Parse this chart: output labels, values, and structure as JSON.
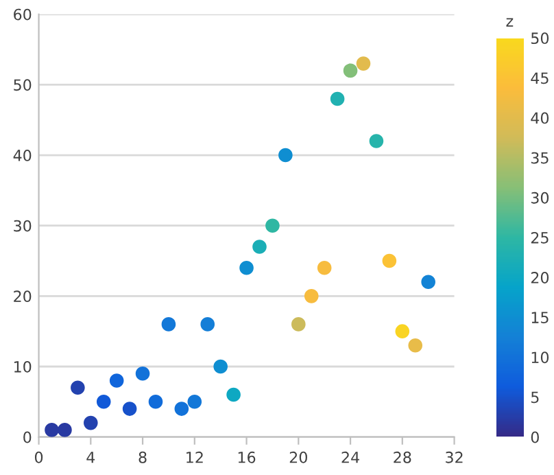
{
  "chart_data": {
    "type": "scatter",
    "clabel": "z",
    "x": [
      1,
      2,
      3,
      4,
      5,
      6,
      7,
      8,
      9,
      10,
      11,
      12,
      13,
      14,
      15,
      16,
      17,
      18,
      19,
      20,
      21,
      22,
      23,
      24,
      25,
      26,
      27,
      28,
      29,
      30
    ],
    "values": [
      1,
      1,
      7,
      2,
      5,
      8,
      4,
      9,
      5,
      16,
      4,
      5,
      16,
      10,
      6,
      24,
      27,
      30,
      40,
      16,
      20,
      24,
      48,
      52,
      53,
      42,
      25,
      15,
      13,
      22
    ],
    "cvalues": [
      2,
      2,
      3,
      3,
      6,
      8,
      5,
      10,
      9,
      11,
      10,
      11,
      12,
      15,
      20,
      15,
      22,
      25,
      15,
      37,
      43,
      43,
      23,
      31,
      40,
      24,
      45,
      49,
      41,
      13
    ],
    "clim": [
      0,
      50
    ],
    "cticks": [
      0,
      5,
      10,
      15,
      20,
      25,
      30,
      35,
      40,
      45,
      50
    ],
    "xlim": [
      0,
      32
    ],
    "xticks": [
      0,
      4,
      8,
      12,
      16,
      20,
      24,
      28,
      32
    ],
    "ylim": [
      0,
      60
    ],
    "yticks": [
      0,
      10,
      20,
      30,
      40,
      50,
      60
    ],
    "grid": "y",
    "marker": "circle"
  }
}
